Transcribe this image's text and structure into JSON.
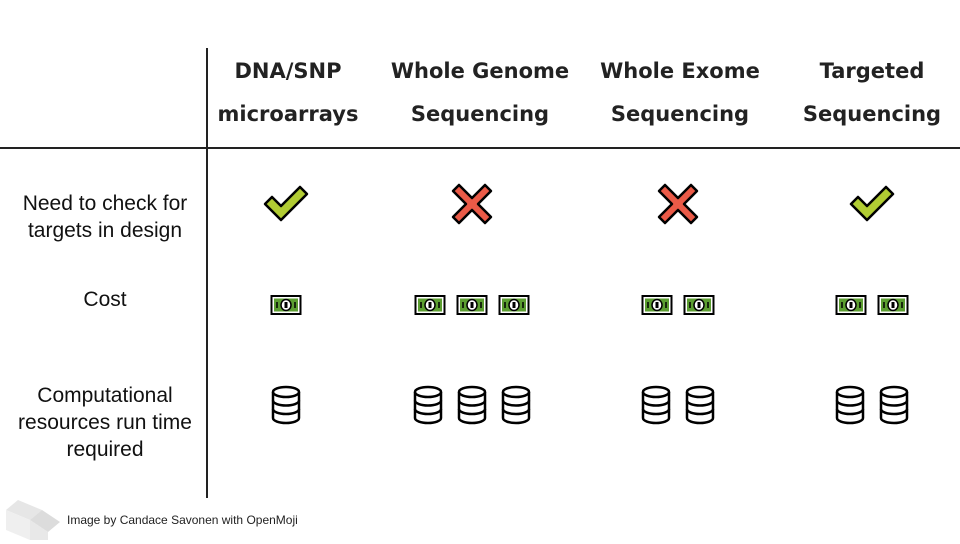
{
  "columns": [
    {
      "line1": "DNA/SNP",
      "line2": "microarrays"
    },
    {
      "line1": "Whole Genome",
      "line2": "Sequencing"
    },
    {
      "line1": "Whole Exome",
      "line2": "Sequencing"
    },
    {
      "line1": "Targeted",
      "line2": "Sequencing"
    }
  ],
  "rows": [
    {
      "key": "targets",
      "lines": [
        "Need to check for",
        "targets in design"
      ]
    },
    {
      "key": "cost",
      "lines": [
        "Cost"
      ]
    },
    {
      "key": "compute",
      "lines": [
        "Computational",
        "resources run time",
        "required"
      ]
    }
  ],
  "cells": {
    "targets": [
      "check-icon",
      "cross-icon",
      "cross-icon",
      "check-icon"
    ],
    "cost": [
      1,
      3,
      2,
      2
    ],
    "compute": [
      1,
      3,
      2,
      2
    ]
  },
  "icons": {
    "check_color": "#b1cc33",
    "cross_color": "#ea5a47",
    "money_color": "#5c9e31",
    "database_color": "#000000"
  },
  "credit": "Image by Candace Savonen with OpenMoji"
}
